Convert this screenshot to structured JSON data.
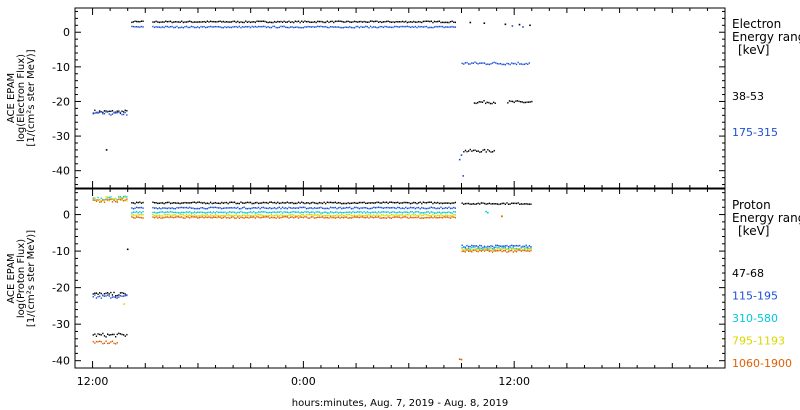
{
  "chart_data": [
    {
      "type": "scatter",
      "panel": "electron",
      "ylabel": [
        "ACE EPAM",
        "log(Electron Flux)",
        "[1/(cm²s ster MeV)]"
      ],
      "ylim": [
        -45,
        7
      ],
      "yticks": [
        0,
        -10,
        -20,
        -30,
        -40
      ],
      "xlim": [
        -1,
        36
      ],
      "legend_title": [
        "Electron",
        "Energy range",
        "[keV]"
      ],
      "series": [
        {
          "name": "38-53",
          "color": "#000000",
          "segments": [
            {
              "x0": 0.0,
              "x1": 2.0,
              "y": -23.0,
              "jitter": 0.5
            },
            {
              "x0": 2.2,
              "x1": 2.9,
              "y": 3.0,
              "jitter": 0.2
            },
            {
              "x0": 3.4,
              "x1": 20.7,
              "y": 3.0,
              "jitter": 0.2
            },
            {
              "x0": 21.1,
              "x1": 22.9,
              "y": -34.3,
              "jitter": 0.4
            },
            {
              "x0": 21.7,
              "x1": 22.9,
              "y": -20.2,
              "jitter": 0.4
            },
            {
              "x0": 23.6,
              "x1": 25.0,
              "y": -20.2,
              "jitter": 0.4
            }
          ],
          "points": [
            [
              0.8,
              -34.0
            ],
            [
              21.5,
              2.8
            ],
            [
              22.3,
              2.6
            ],
            [
              23.5,
              2.3
            ],
            [
              24.3,
              2.2
            ],
            [
              24.9,
              2.0
            ]
          ]
        },
        {
          "name": "175-315",
          "color": "#1f4fd8",
          "segments": [
            {
              "x0": 0.0,
              "x1": 2.0,
              "y": -23.5,
              "jitter": 0.5
            },
            {
              "x0": 2.2,
              "x1": 2.9,
              "y": 1.5,
              "jitter": 0.2
            },
            {
              "x0": 3.4,
              "x1": 20.7,
              "y": 1.5,
              "jitter": 0.2
            },
            {
              "x0": 21.0,
              "x1": 24.9,
              "y": -9.0,
              "jitter": 0.4
            }
          ],
          "points": [
            [
              20.9,
              -36.8
            ],
            [
              21.0,
              -35.5
            ],
            [
              21.1,
              -41.5
            ],
            [
              23.9,
              1.8
            ],
            [
              24.5,
              1.5
            ]
          ]
        }
      ]
    },
    {
      "type": "scatter",
      "panel": "proton",
      "ylabel": [
        "ACE EPAM",
        "log(Proton Flux)",
        "[1/(cm²s ster MeV)]"
      ],
      "ylim": [
        -42,
        7
      ],
      "yticks": [
        0,
        -10,
        -20,
        -30,
        -40
      ],
      "xlim": [
        -1,
        36
      ],
      "xticks": [
        {
          "x": 0,
          "label": "12:00"
        },
        {
          "x": 12,
          "label": "0:00"
        },
        {
          "x": 24,
          "label": "12:00"
        }
      ],
      "xlabel": "hours:minutes, Aug.  7, 2019 - Aug.  8, 2019",
      "legend_title": [
        "Proton",
        "Energy range",
        "[keV]"
      ],
      "series": [
        {
          "name": "47-68",
          "color": "#000000",
          "segments": [
            {
              "x0": 0.0,
              "x1": 2.0,
              "y": -21.8,
              "jitter": 0.5
            },
            {
              "x0": 0.0,
              "x1": 2.0,
              "y": -33.0,
              "jitter": 0.5
            },
            {
              "x0": 2.2,
              "x1": 2.9,
              "y": 3.2,
              "jitter": 0.2
            },
            {
              "x0": 3.4,
              "x1": 20.7,
              "y": 3.2,
              "jitter": 0.2
            },
            {
              "x0": 21.0,
              "x1": 25.0,
              "y": 3.0,
              "jitter": 0.2
            }
          ],
          "points": [
            [
              2.0,
              -9.5
            ]
          ]
        },
        {
          "name": "115-195",
          "color": "#1f4fd8",
          "segments": [
            {
              "x0": 0.0,
              "x1": 2.0,
              "y": -22.5,
              "jitter": 0.5
            },
            {
              "x0": 2.2,
              "x1": 2.9,
              "y": 1.8,
              "jitter": 0.2
            },
            {
              "x0": 3.4,
              "x1": 20.7,
              "y": 1.8,
              "jitter": 0.2
            },
            {
              "x0": 21.0,
              "x1": 25.0,
              "y": -8.7,
              "jitter": 0.3
            }
          ],
          "points": []
        },
        {
          "name": "310-580",
          "color": "#00c8d8",
          "segments": [
            {
              "x0": 0.0,
              "x1": 2.0,
              "y": 4.5,
              "jitter": 0.5
            },
            {
              "x0": 2.2,
              "x1": 2.9,
              "y": 0.6,
              "jitter": 0.2
            },
            {
              "x0": 3.4,
              "x1": 20.7,
              "y": 0.6,
              "jitter": 0.2
            },
            {
              "x0": 21.0,
              "x1": 25.0,
              "y": -9.2,
              "jitter": 0.3
            }
          ],
          "points": [
            [
              22.4,
              0.8
            ],
            [
              22.5,
              0.5
            ]
          ]
        },
        {
          "name": "795-1193",
          "color": "#d8d800",
          "segments": [
            {
              "x0": 0.0,
              "x1": 2.0,
              "y": 4.2,
              "jitter": 0.6
            },
            {
              "x0": 2.2,
              "x1": 2.9,
              "y": -0.2,
              "jitter": 0.2
            },
            {
              "x0": 3.4,
              "x1": 20.7,
              "y": -0.2,
              "jitter": 0.2
            },
            {
              "x0": 21.0,
              "x1": 25.0,
              "y": -9.6,
              "jitter": 0.3
            }
          ],
          "points": [
            [
              23.3,
              -0.4
            ],
            [
              1.8,
              -24.5
            ]
          ]
        },
        {
          "name": "1060-1900",
          "color": "#e06000",
          "segments": [
            {
              "x0": 0.0,
              "x1": 2.0,
              "y": 3.8,
              "jitter": 0.6
            },
            {
              "x0": 2.2,
              "x1": 2.9,
              "y": -0.8,
              "jitter": 0.2
            },
            {
              "x0": 3.4,
              "x1": 20.7,
              "y": -0.8,
              "jitter": 0.2
            },
            {
              "x0": 21.0,
              "x1": 25.0,
              "y": -10.0,
              "jitter": 0.3
            },
            {
              "x0": 0.0,
              "x1": 1.4,
              "y": -35.0,
              "jitter": 0.4
            }
          ],
          "points": [
            [
              20.9,
              -39.6
            ],
            [
              21.0,
              -39.7
            ],
            [
              23.3,
              -0.5
            ]
          ]
        }
      ]
    }
  ]
}
